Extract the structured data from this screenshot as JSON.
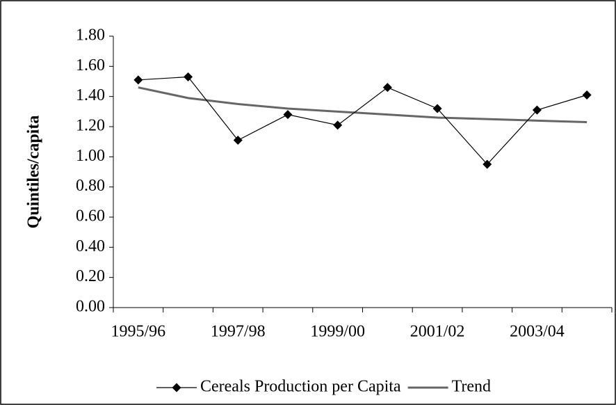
{
  "chart_data": {
    "type": "line",
    "y_label": "Quintiles/capita",
    "categories": [
      "1995/96",
      null,
      "1997/98",
      null,
      "1999/00",
      null,
      "2001/02",
      null,
      "2003/04",
      null
    ],
    "series": [
      {
        "name": "Cereals Production per Capita",
        "color": "#000000",
        "marker": "diamond",
        "values": [
          1.51,
          1.53,
          1.11,
          1.28,
          1.21,
          1.46,
          1.32,
          0.95,
          1.31,
          1.41
        ]
      },
      {
        "name": "Trend",
        "color": "#666666",
        "values": [
          1.46,
          1.39,
          1.35,
          1.32,
          1.3,
          1.28,
          1.26,
          1.25,
          1.24,
          1.23
        ]
      }
    ],
    "ylim": [
      0,
      1.8
    ],
    "yticks": [
      {
        "value": 0,
        "label": "0.00"
      },
      {
        "value": 0.2,
        "label": "0.20"
      },
      {
        "value": 0.4,
        "label": "0.40"
      },
      {
        "value": 0.6,
        "label": "0.60"
      },
      {
        "value": 0.8,
        "label": "0.80"
      },
      {
        "value": 1.0,
        "label": "1.00"
      },
      {
        "value": 1.2,
        "label": "1.20"
      },
      {
        "value": 1.4,
        "label": "1.40"
      },
      {
        "value": 1.6,
        "label": "1.60"
      },
      {
        "value": 1.8,
        "label": "1.80"
      }
    ],
    "legend": "bottom"
  }
}
